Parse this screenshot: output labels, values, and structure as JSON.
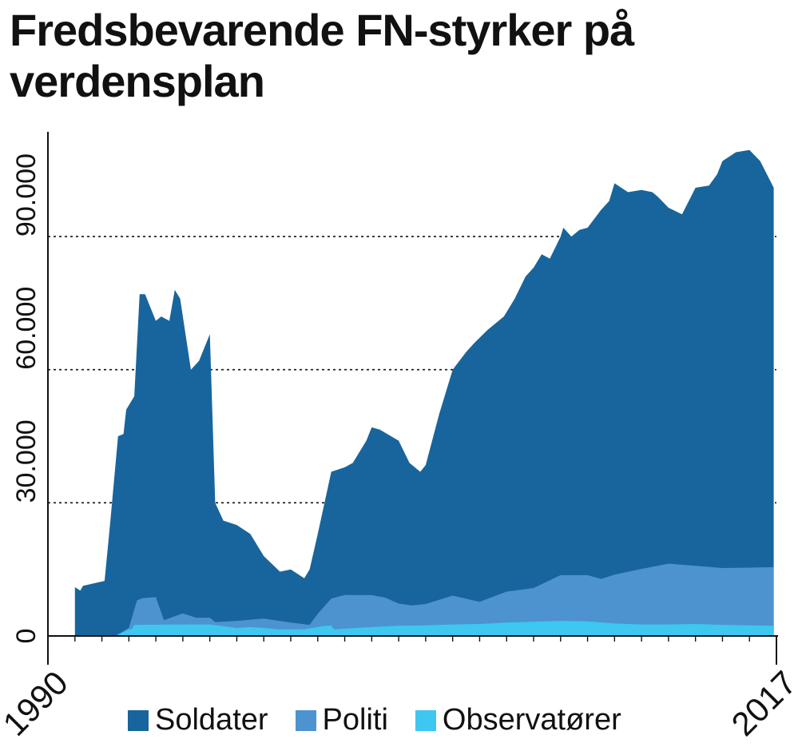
{
  "title": "Fredsbevarende FN-styrker på verdensplan",
  "colors": {
    "soldater": "#17659c",
    "politi": "#4d93d0",
    "observatorer": "#3ec7f0"
  },
  "legend": [
    {
      "label": "Soldater",
      "color": "#17659c"
    },
    {
      "label": "Politi",
      "color": "#4d93d0"
    },
    {
      "label": "Observatører",
      "color": "#3ec7f0"
    }
  ],
  "chart_data": {
    "type": "area",
    "stacked": true,
    "title": "Fredsbevarende FN-styrker på verdensplan",
    "xlim": [
      1990,
      2017
    ],
    "ylim": [
      0,
      110000
    ],
    "x_tick_labels": [
      "1990",
      "2017"
    ],
    "y_ticks": [
      0,
      30000,
      60000,
      90000
    ],
    "y_tick_labels": [
      "0",
      "30.000",
      "60.000",
      "90.000"
    ],
    "grid": "dotted horizontal at 30.000, 60.000, 90.000",
    "legend_position": "bottom",
    "x": [
      1991.0,
      1991.2,
      1991.4,
      2016.9
    ],
    "series": [
      {
        "name": "Observatører",
        "values": [
          0,
          0,
          0,
          2300
        ]
      },
      {
        "name": "Politi",
        "values": [
          0,
          0,
          0,
          13200
        ]
      },
      {
        "name": "Soldater",
        "values": [
          11000,
          10200,
          11300,
          81000
        ]
      }
    ],
    "observatorer_points": [
      [
        1991.0,
        0
      ],
      [
        1992.5,
        0
      ],
      [
        1993.0,
        1500
      ],
      [
        1993.1,
        1500
      ],
      [
        1993.2,
        2500
      ],
      [
        1995.0,
        2600
      ],
      [
        1996.0,
        2600
      ],
      [
        1996.5,
        2200
      ],
      [
        1997.0,
        1800
      ],
      [
        1997.5,
        2000
      ],
      [
        1998.0,
        1800
      ],
      [
        1998.5,
        1500
      ],
      [
        1999.5,
        1500
      ],
      [
        2000.2,
        2200
      ],
      [
        2000.5,
        2400
      ],
      [
        2000.6,
        1500
      ],
      [
        2002.0,
        2000
      ],
      [
        2003.0,
        2300
      ],
      [
        2004.0,
        2400
      ],
      [
        2005.0,
        2600
      ],
      [
        2006.0,
        2700
      ],
      [
        2007.0,
        3000
      ],
      [
        2008.0,
        3200
      ],
      [
        2009.0,
        3400
      ],
      [
        2010.0,
        3300
      ],
      [
        2011.0,
        2800
      ],
      [
        2012.0,
        2600
      ],
      [
        2013.0,
        2600
      ],
      [
        2014.0,
        2700
      ],
      [
        2015.0,
        2500
      ],
      [
        2016.0,
        2400
      ],
      [
        2016.9,
        2300
      ]
    ],
    "politi_points": [
      [
        1991.0,
        0
      ],
      [
        1992.0,
        0
      ],
      [
        1992.5,
        0
      ],
      [
        1993.0,
        300
      ],
      [
        1993.3,
        5500
      ],
      [
        1993.5,
        6000
      ],
      [
        1994.0,
        6200
      ],
      [
        1994.3,
        1000
      ],
      [
        1995.0,
        2500
      ],
      [
        1995.5,
        1500
      ],
      [
        1996.0,
        1500
      ],
      [
        1996.2,
        700
      ],
      [
        1997.0,
        1600
      ],
      [
        1998.0,
        2100
      ],
      [
        1999.0,
        1500
      ],
      [
        1999.7,
        800
      ],
      [
        2000.0,
        3000
      ],
      [
        2000.5,
        6000
      ],
      [
        2001.0,
        7600
      ],
      [
        2002.0,
        7200
      ],
      [
        2002.5,
        6500
      ],
      [
        2003.0,
        5000
      ],
      [
        2003.5,
        4500
      ],
      [
        2004.0,
        4800
      ],
      [
        2005.0,
        6500
      ],
      [
        2006.0,
        5000
      ],
      [
        2007.0,
        7000
      ],
      [
        2008.0,
        7600
      ],
      [
        2009.0,
        10300
      ],
      [
        2010.0,
        10400
      ],
      [
        2010.5,
        9800
      ],
      [
        2011.0,
        11000
      ],
      [
        2012.0,
        12500
      ],
      [
        2013.0,
        13700
      ],
      [
        2014.0,
        13100
      ],
      [
        2015.0,
        12800
      ],
      [
        2016.0,
        13000
      ],
      [
        2016.9,
        13200
      ]
    ],
    "soldater_points": [
      [
        1991.0,
        11000
      ],
      [
        1991.2,
        10200
      ],
      [
        1991.3,
        11300
      ],
      [
        1992.1,
        12400
      ],
      [
        1992.3,
        25000
      ],
      [
        1992.6,
        42500
      ],
      [
        1992.8,
        43500
      ],
      [
        1992.9,
        50000
      ],
      [
        1993.2,
        52000
      ],
      [
        1993.4,
        65000
      ],
      [
        1993.6,
        67000
      ],
      [
        1994.0,
        58000
      ],
      [
        1994.2,
        60000
      ],
      [
        1994.5,
        58000
      ],
      [
        1994.7,
        66000
      ],
      [
        1994.9,
        68000
      ],
      [
        1995.3,
        47000
      ],
      [
        1995.6,
        50000
      ],
      [
        1996.0,
        52000
      ],
      [
        1996.2,
        25000
      ],
      [
        1996.5,
        21000
      ],
      [
        1997.0,
        21000
      ],
      [
        1997.5,
        17000
      ],
      [
        1998.0,
        12000
      ],
      [
        1998.6,
        11000
      ],
      [
        1999.0,
        11500
      ],
      [
        1999.5,
        9000
      ],
      [
        1999.7,
        11500
      ],
      [
        2000.0,
        19000
      ],
      [
        2000.5,
        29000
      ],
      [
        2001.0,
        28000
      ],
      [
        2001.3,
        28000
      ],
      [
        2001.8,
        28500
      ],
      [
        2002.0,
        31000
      ],
      [
        2002.3,
        30000
      ],
      [
        2003.0,
        27000
      ],
      [
        2003.4,
        24000
      ],
      [
        2003.8,
        23000
      ],
      [
        2004.0,
        25000
      ],
      [
        2004.5,
        36000
      ],
      [
        2005.0,
        46000
      ],
      [
        2005.5,
        47000
      ],
      [
        2005.8,
        48000
      ],
      [
        2006.3,
        59000
      ],
      [
        2006.9,
        57000
      ],
      [
        2007.3,
        60000
      ],
      [
        2007.7,
        57000
      ],
      [
        2008.0,
        58000
      ],
      [
        2008.3,
        64000
      ],
      [
        2008.6,
        65000
      ],
      [
        2009.0,
        60000
      ],
      [
        2009.1,
        65000
      ],
      [
        2009.4,
        61500
      ],
      [
        2009.7,
        64000
      ],
      [
        2010.0,
        65000
      ],
      [
        2010.5,
        67000
      ],
      [
        2010.8,
        66000
      ],
      [
        2011.0,
        65000
      ],
      [
        2011.5,
        67000
      ],
      [
        2012.0,
        68000
      ],
      [
        2012.4,
        72000
      ],
      [
        2012.6,
        72000
      ],
      [
        2013.0,
        70000
      ],
      [
        2013.5,
        70000
      ],
      [
        2014.0,
        68000
      ],
      [
        2014.5,
        67000
      ],
      [
        2014.8,
        65000
      ],
      [
        2015.0,
        70000
      ],
      [
        2015.5,
        68000
      ],
      [
        2016.0,
        72000
      ],
      [
        2016.4,
        72000
      ],
      [
        2016.9,
        81000
      ]
    ],
    "total_points": [
      [
        1991.0,
        11000
      ],
      [
        1991.2,
        10200
      ],
      [
        1991.3,
        11300
      ],
      [
        1992.1,
        12400
      ],
      [
        1992.3,
        25000
      ],
      [
        1992.6,
        45000
      ],
      [
        1992.8,
        45500
      ],
      [
        1992.9,
        51000
      ],
      [
        1993.2,
        54000
      ],
      [
        1993.4,
        77000
      ],
      [
        1993.6,
        77000
      ],
      [
        1994.0,
        71000
      ],
      [
        1994.2,
        72000
      ],
      [
        1994.5,
        71000
      ],
      [
        1994.7,
        78000
      ],
      [
        1994.9,
        76000
      ],
      [
        1995.3,
        60000
      ],
      [
        1995.6,
        62000
      ],
      [
        1996.0,
        68000
      ],
      [
        1996.2,
        30000
      ],
      [
        1996.5,
        26000
      ],
      [
        1997.0,
        25000
      ],
      [
        1997.5,
        23000
      ],
      [
        1998.0,
        18000
      ],
      [
        1998.6,
        14500
      ],
      [
        1999.0,
        15000
      ],
      [
        1999.5,
        13000
      ],
      [
        1999.7,
        15000
      ],
      [
        2000.0,
        23000
      ],
      [
        2000.5,
        37000
      ],
      [
        2001.0,
        38000
      ],
      [
        2001.3,
        39000
      ],
      [
        2001.8,
        44000
      ],
      [
        2002.0,
        47000
      ],
      [
        2002.3,
        46500
      ],
      [
        2003.0,
        44000
      ],
      [
        2003.4,
        39000
      ],
      [
        2003.8,
        37000
      ],
      [
        2004.0,
        38500
      ],
      [
        2004.5,
        50000
      ],
      [
        2005.0,
        60000
      ],
      [
        2005.5,
        64000
      ],
      [
        2005.8,
        66000
      ],
      [
        2006.3,
        69000
      ],
      [
        2006.9,
        72000
      ],
      [
        2007.3,
        76000
      ],
      [
        2007.7,
        81000
      ],
      [
        2008.0,
        83000
      ],
      [
        2008.3,
        86000
      ],
      [
        2008.6,
        85000
      ],
      [
        2009.0,
        90000
      ],
      [
        2009.1,
        92000
      ],
      [
        2009.4,
        90000
      ],
      [
        2009.7,
        91500
      ],
      [
        2010.0,
        92000
      ],
      [
        2010.5,
        96000
      ],
      [
        2010.8,
        98000
      ],
      [
        2011.0,
        102000
      ],
      [
        2011.5,
        100000
      ],
      [
        2012.0,
        100500
      ],
      [
        2012.4,
        100000
      ],
      [
        2012.6,
        99000
      ],
      [
        2013.0,
        96500
      ],
      [
        2013.5,
        95000
      ],
      [
        2014.0,
        101000
      ],
      [
        2014.5,
        101500
      ],
      [
        2014.8,
        104000
      ],
      [
        2015.0,
        107000
      ],
      [
        2015.5,
        109000
      ],
      [
        2016.0,
        109500
      ],
      [
        2016.4,
        107000
      ],
      [
        2016.9,
        101000
      ]
    ]
  }
}
